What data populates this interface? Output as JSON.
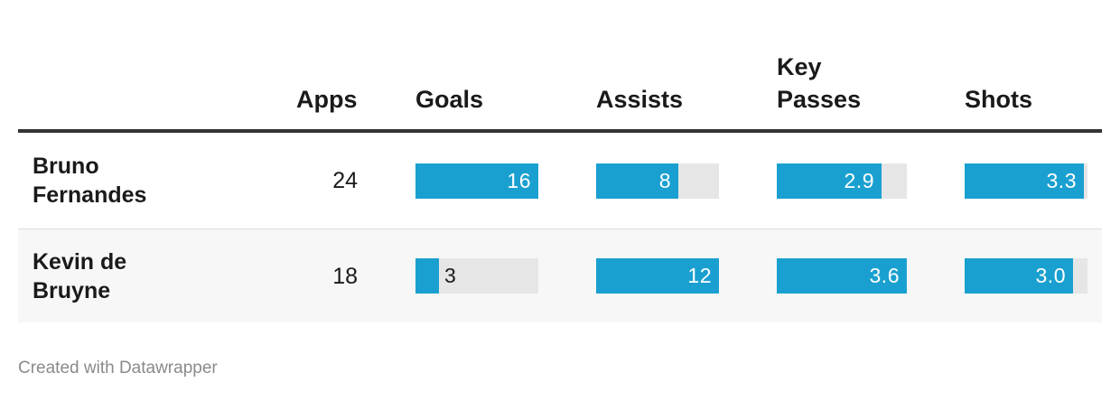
{
  "table": {
    "columns": {
      "apps": "Apps",
      "goals": "Goals",
      "assists": "Assists",
      "key_passes": [
        "Key",
        "Passes"
      ],
      "shots": "Shots"
    }
  },
  "chart_data": {
    "type": "table",
    "columns": [
      "Apps",
      "Goals",
      "Assists",
      "Key Passes",
      "Shots"
    ],
    "bar_max": {
      "goals": 16,
      "assists": 12,
      "key_passes": 3.6,
      "shots": 3.4
    },
    "rows": [
      {
        "name_lines": [
          "Bruno",
          "Fernandes"
        ],
        "apps": "24",
        "goals": 16,
        "goals_label": "16",
        "assists": 8,
        "assists_label": "8",
        "key_passes": 2.9,
        "key_passes_label": "2.9",
        "shots": 3.3,
        "shots_label": "3.3"
      },
      {
        "name_lines": [
          "Kevin de",
          "Bruyne"
        ],
        "apps": "18",
        "goals": 3,
        "goals_label": "3",
        "assists": 12,
        "assists_label": "12",
        "key_passes": 3.6,
        "key_passes_label": "3.6",
        "shots": 3.0,
        "shots_label": "3.0"
      }
    ]
  },
  "colors": {
    "bar_fill": "#1aa0d0",
    "bar_track": "#e6e6e6",
    "label_on_bar": "#ffffff",
    "label_off_bar": "#1a1a1a",
    "row_alt_background": "#f7f7f7"
  },
  "footer": {
    "credit": "Created with Datawrapper"
  }
}
